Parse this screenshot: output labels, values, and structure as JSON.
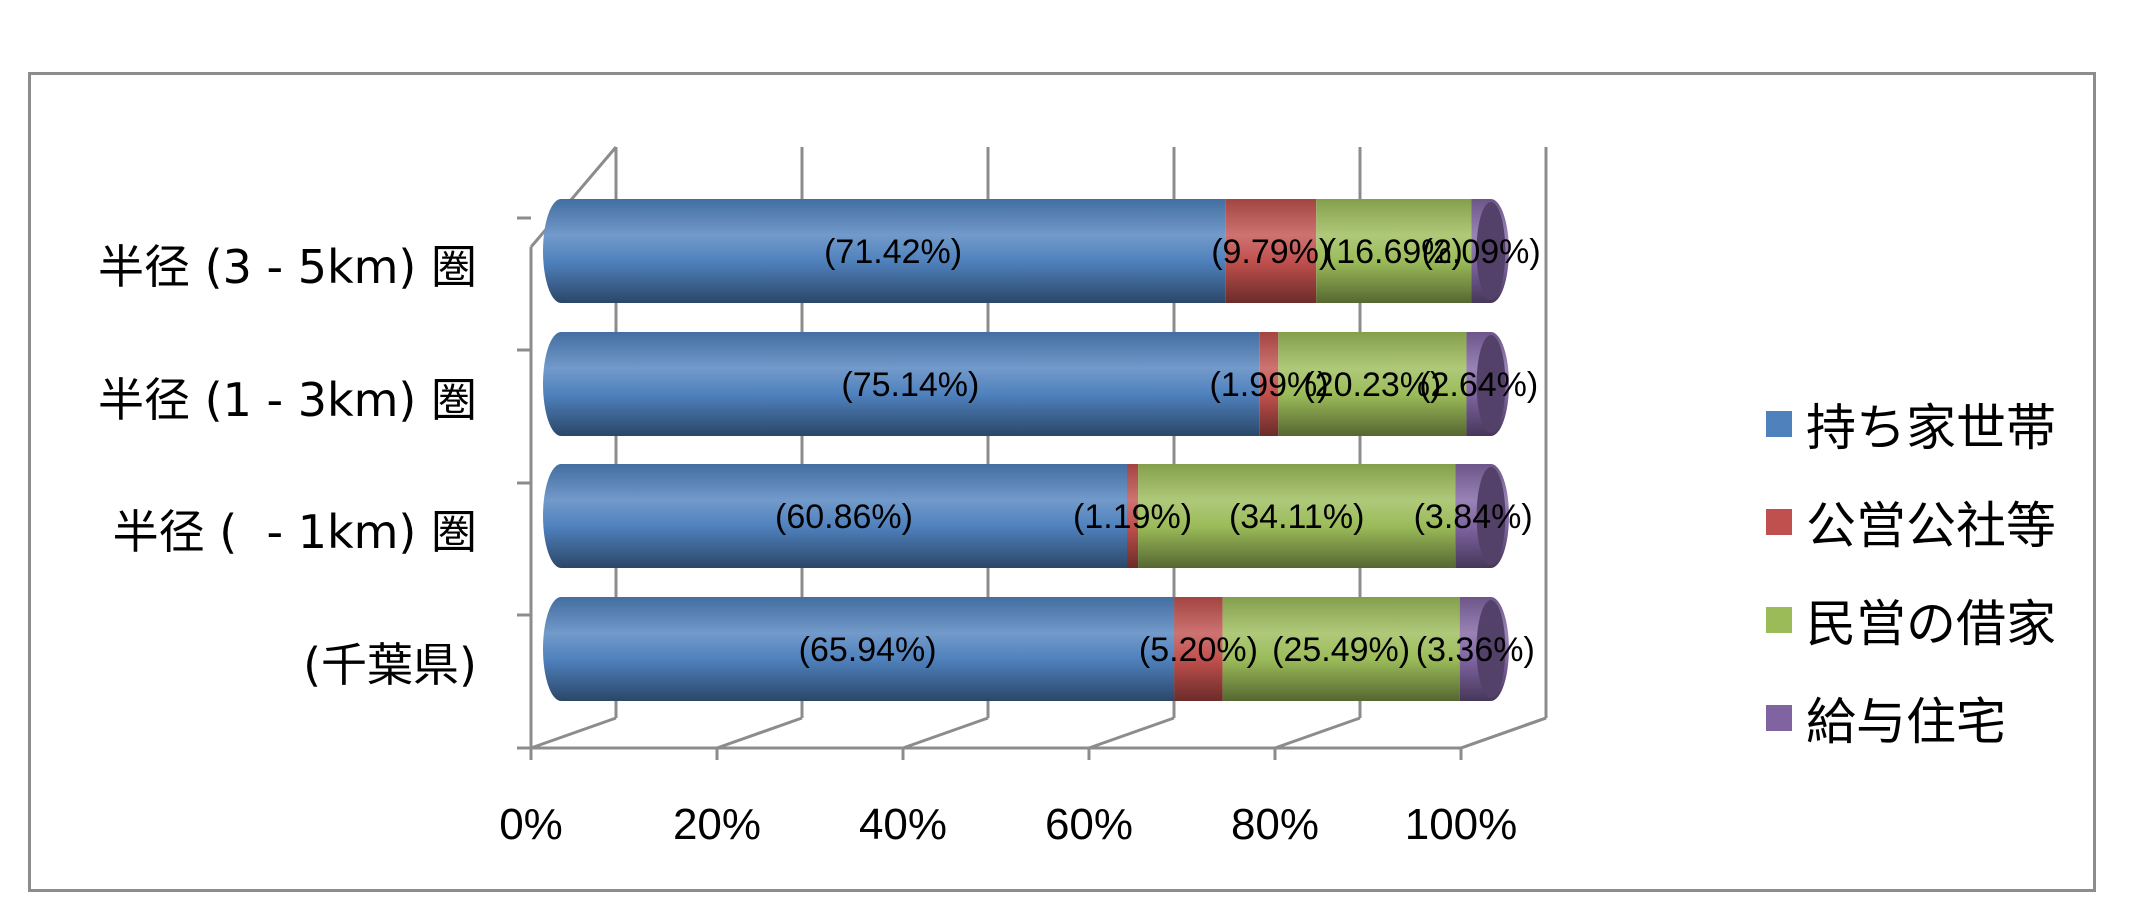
{
  "chart_data": {
    "type": "bar",
    "orientation": "horizontal",
    "stacked": "percent",
    "style": "3d-cylinder",
    "title": "",
    "xlabel": "",
    "ylabel": "",
    "xlim": [
      0,
      100
    ],
    "grid": true,
    "legend_position": "right",
    "x_ticks": [
      "0%",
      "20%",
      "40%",
      "60%",
      "80%",
      "100%"
    ],
    "categories": [
      "半径 (3 - 5km) 圏",
      "半径 (1 - 3km) 圏",
      "半径 (  - 1km) 圏",
      "(千葉県)"
    ],
    "series": [
      {
        "name": "持ち家世帯",
        "color": "#4f81bd",
        "values": [
          71.42,
          75.14,
          60.86,
          65.94
        ],
        "labels": [
          "(71.42%)",
          "(75.14%)",
          "(60.86%)",
          "(65.94%)"
        ]
      },
      {
        "name": "公営公社等",
        "color": "#c0504d",
        "values": [
          9.79,
          1.99,
          1.19,
          5.2
        ],
        "labels": [
          "(9.79%)",
          "(1.99%)",
          "(1.19%)",
          "(5.20%)"
        ]
      },
      {
        "name": "民営の借家",
        "color": "#9bbb59",
        "values": [
          16.69,
          20.23,
          34.11,
          25.49
        ],
        "labels": [
          "(16.69%)",
          "(20.23%)",
          "(34.11%)",
          "(25.49%)"
        ]
      },
      {
        "name": "給与住宅",
        "color": "#8064a2",
        "values": [
          2.09,
          2.64,
          3.84,
          3.36
        ],
        "labels": [
          "(2.09%)",
          "(2.64%)",
          "(3.84%)",
          "(3.36%)"
        ]
      }
    ]
  }
}
